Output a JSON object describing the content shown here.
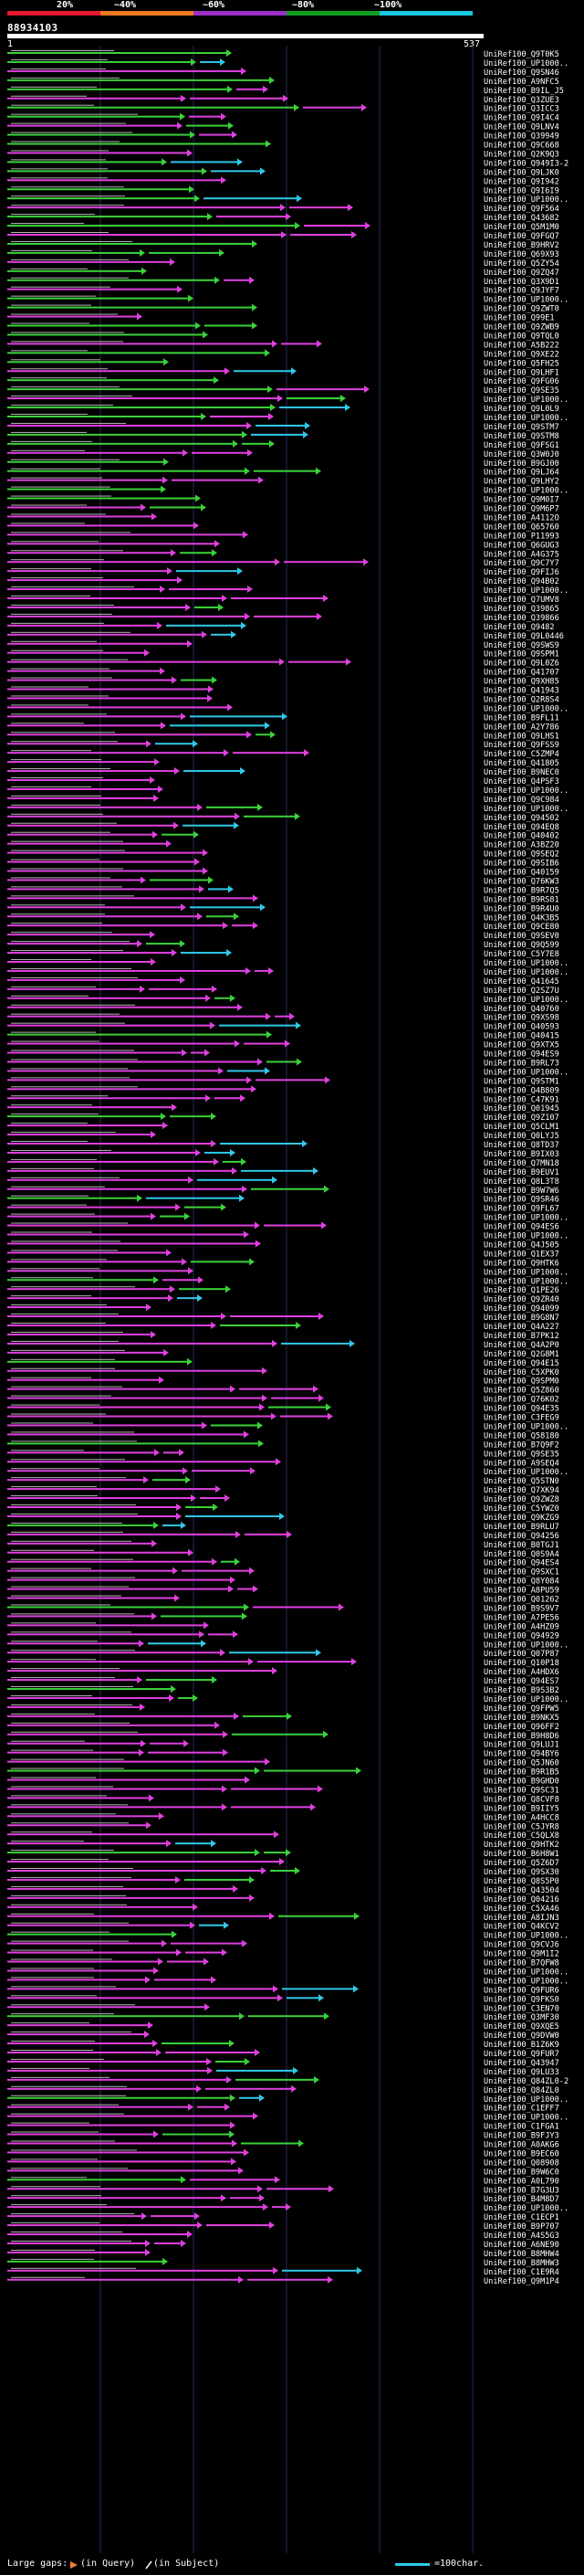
{
  "header": {
    "query_id": "88934103",
    "range_start": "1",
    "range_end": "537",
    "percent_labels": [
      "20%",
      "~40%",
      "~60%",
      "~80%",
      "~100%"
    ],
    "colors": {
      "band_20": "#e8192c",
      "band_40": "#f07820",
      "band_60": "#9b30c8",
      "band_80": "#10a020",
      "band_100": "#18c8e0",
      "magenta": "#e040e0",
      "green": "#3ad23a",
      "cyan": "#30c8e8",
      "orange": "#f08030",
      "white": "#ffffff"
    }
  },
  "hit_labels": [
    "UniRef100_Q9T0K5",
    "UniRef100_UP1000..",
    "UniRef100_Q9SN46",
    "UniRef100_A9NFC5",
    "UniRef100_B9IL_J5",
    "UniRef100_Q3ZUE3",
    "UniRef100_Q3ICC3",
    "UniRef100_Q9I4C4",
    "UniRef100_Q9LNV4",
    "UniRef100_Q39949",
    "UniRef100_Q9C668",
    "UniRef100_Q2K9Q3",
    "UniRef100_Q949I3-2",
    "UniRef100_Q9LJK0",
    "UniRef100_Q9I942",
    "UniRef100_Q9I6I9",
    "UniRef100_UP1000..",
    "UniRef100_Q9F564",
    "UniRef100_Q43682",
    "UniRef100_Q5M1M0",
    "UniRef100_Q9FGQ7",
    "UniRef100_B9HRV2",
    "UniRef100_Q69X93",
    "UniRef100_Q5ZY54",
    "UniRef100_Q9ZQ47",
    "UniRef100_Q3X9D1",
    "UniRef100_Q9JYF7",
    "UniRef100_UP1000..",
    "UniRef100_Q9ZWT0",
    "UniRef100_Q99E1",
    "UniRef100_Q9ZWB9",
    "UniRef100_Q9TQL0",
    "UniRef100_A5B222",
    "UniRef100_Q9XE22",
    "UniRef100_Q5FH25",
    "UniRef100_Q9LHF1",
    "UniRef100_Q9FG06",
    "UniRef100_Q9SE35",
    "UniRef100_UP1000..",
    "UniRef100_Q9L0L9",
    "UniRef100_UP1000..",
    "UniRef100_Q9STM7",
    "UniRef100_Q9STM8",
    "UniRef100_Q9FSG1",
    "UniRef100_Q3W0J0",
    "UniRef100_B9GJ00",
    "UniRef100_Q9LJ64",
    "UniRef100_Q9LHY2",
    "UniRef100_UP1000..",
    "UniRef100_Q9M0I7",
    "UniRef100_Q9M6P7",
    "UniRef100_A4112O",
    "UniRef100_Q65760",
    "UniRef100_P11993",
    "UniRef100_Q6GUG3",
    "UniRef100_A4G375",
    "UniRef100_Q9C7Y7",
    "UniRef100_Q9FIJ6",
    "UniRef100_Q94B02",
    "UniRef100_UP1000..",
    "UniRef100_Q7UMV8",
    "UniRef100_Q39865",
    "UniRef100_Q39866",
    "UniRef100_Q9482",
    "UniRef100_Q9L0446",
    "UniRef100_Q9SWS9",
    "UniRef100_Q9SPM1",
    "UniRef100_Q9L0Z6",
    "UniRef100_Q41707",
    "UniRef100_Q9XH85",
    "UniRef100_Q41943",
    "UniRef100_Q2R8S4",
    "UniRef100_UP1000..",
    "UniRef100_B9FL11",
    "UniRef100_A2Y786",
    "UniRef100_Q9LHS1",
    "UniRef100_Q9FSS9",
    "UniRef100_C5ZMP4",
    "UniRef100_Q41805",
    "UniRef100_B9NEC0",
    "UniRef100_Q4PSF3",
    "UniRef100_UP1000..",
    "UniRef100_Q9C984",
    "UniRef100_UP1000..",
    "UniRef100_Q94502",
    "UniRef100_Q94EQ8",
    "UniRef100_Q40402",
    "UniRef100_A3BZ20",
    "UniRef100_Q9SEQ2",
    "UniRef100_Q9SIB6",
    "UniRef100_Q40159",
    "UniRef100_Q76KW3",
    "UniRef100_B9R7Q5",
    "UniRef100_B9RS81",
    "UniRef100_B9R4U0",
    "UniRef100_Q4K3B5",
    "UniRef100_Q9CE80",
    "UniRef100_Q9SEV0",
    "UniRef100_Q9Q599",
    "UniRef100_C5Y7E8",
    "UniRef100_UP1000..",
    "UniRef100_UP1000..",
    "UniRef100_Q41645",
    "UniRef100_Q2SZ7U",
    "UniRef100_UP1000..",
    "UniRef100_Q40760",
    "UniRef100_Q9XS98",
    "UniRef100_Q40593",
    "UniRef100_Q40415",
    "UniRef100_Q9XTX5",
    "UniRef100_Q94ES9",
    "UniRef100_B9RL73",
    "UniRef100_UP1000..",
    "UniRef100_Q9STM1",
    "UniRef100_Q4B809",
    "UniRef100_C47K91",
    "UniRef100_Q01945",
    "UniRef100_Q9Z107",
    "UniRef100_Q5CLM1",
    "UniRef100_Q0LYJ5",
    "UniRef100_Q8TD37",
    "UniRef100_B9IX03",
    "UniRef100_Q7MN18",
    "UniRef100_B9EUV1",
    "UniRef100_Q8L3T8",
    "UniRef100_B9W7W6",
    "UniRef100_Q9SR46",
    "UniRef100_Q9FL67",
    "UniRef100_UP1000..",
    "UniRef100_Q94ES6",
    "UniRef100_UP1000..",
    "UniRef100_Q4J505",
    "UniRef100_Q1EX37",
    "UniRef100_Q9HTK6",
    "UniRef100_UP1000..",
    "UniRef100_UP1000..",
    "UniRef100_Q1PE26",
    "UniRef100_Q9ZR40",
    "UniRef100_Q94099",
    "UniRef100_B9G8N7",
    "UniRef100_Q4A227",
    "UniRef100_B7PK12",
    "UniRef100_Q4A2P0",
    "UniRef100_Q2G8M1",
    "UniRef100_Q94E15",
    "UniRef100_C5XPK0",
    "UniRef100_Q9SPM0",
    "UniRef100_Q5Z860",
    "UniRef100_Q76K02",
    "UniRef100_Q94E35",
    "UniRef100_C3FEG9",
    "UniRef100_UP1000..",
    "UniRef100_Q58180",
    "UniRef100_B7Q9F2",
    "UniRef100_Q9SE35",
    "UniRef100_A9SEQ4",
    "UniRef100_UP1000..",
    "UniRef100_Q5STN0",
    "UniRef100_Q7XK94",
    "UniRef100_Q9ZWZ8",
    "UniRef100_C5YWZ0",
    "UniRef100_Q9KZG9",
    "UniRef100_B9RLU7",
    "UniRef100_Q94256",
    "UniRef100_B0TGJ1",
    "UniRef100_Q0S9A4",
    "UniRef100_Q94ES4",
    "UniRef100_Q9SXC1",
    "UniRef100_Q8Y084",
    "UniRef100_A8PU59",
    "UniRef100_Q01262",
    "UniRef100_B9S9V7",
    "UniRef100_A7PE56",
    "UniRef100_A4HZ09",
    "UniRef100_Q94929",
    "UniRef100_UP1000..",
    "UniRef100_Q07P87",
    "UniRef100_Q10P18",
    "UniRef100_A4HDX6",
    "UniRef100_Q94ES7",
    "UniRef100_B9S3B2",
    "UniRef100_UP1000..",
    "UniRef100_Q9FPW5",
    "UniRef100_B9NKX5",
    "UniRef100_Q96FF2",
    "UniRef100_B9H8D6",
    "UniRef100_Q9LUJ1",
    "UniRef100_Q94BY6",
    "UniRef100_Q5JN60",
    "UniRef100_B9R1B5",
    "UniRef100_B9GHD0",
    "UniRef100_Q9SC31",
    "UniRef100_Q8CVF8",
    "UniRef100_B9IIY5",
    "UniRef100_A4HCC8",
    "UniRef100_C5JYR8",
    "UniRef100_C5QLX8",
    "UniRef100_Q9HTK2",
    "UniRef100_B6H8W1",
    "UniRef100_Q5Z6D7",
    "UniRef100_Q9SX30",
    "UniRef100_Q8S5P0",
    "UniRef100_Q43504",
    "UniRef100_Q04216",
    "UniRef100_C5XA46",
    "UniRef100_A8IJN3",
    "UniRef100_Q4KCV2",
    "UniRef100_UP1000..",
    "UniRef100_Q9CVJ6",
    "UniRef100_Q9M1I2",
    "UniRef100_B7QFW8",
    "UniRef100_UP1000..",
    "UniRef100_UP1000..",
    "UniRef100_Q9FUR6",
    "UniRef100_Q9FKS0",
    "UniRef100_C3EN70",
    "UniRef100_Q3MF30",
    "UniRef100_Q9XQE5",
    "UniRef100_Q9DVW0",
    "UniRef100_B1Z6K9",
    "UniRef100_Q9FUR7",
    "UniRef100_Q43947",
    "UniRef100_Q9LU33",
    "UniRef100_Q84ZL0-2",
    "UniRef100_Q84ZL0",
    "UniRef100_UP1000..",
    "UniRef100_C1EFF7",
    "UniRef100_UP1000..",
    "UniRef100_C1FGA1",
    "UniRef100_B9FJY3",
    "UniRef100_A0AKG6",
    "UniRef100_B9EC60",
    "UniRef100_Q08908",
    "UniRef100_B9W6C0",
    "UniRef100_A0L790",
    "UniRef100_B7G3U3",
    "UniRef100_B4M8D7",
    "UniRef100_UP1000..",
    "UniRef100_C1ECP1",
    "UniRef100_B9P707",
    "UniRef100_A4S5G3",
    "UniRef100_A6NE90",
    "UniRef100_B8MHW4",
    "UniRef100_B8MHW3",
    "UniRef100_C1E9R4",
    "UniRef100_Q9M1P4"
  ],
  "legend": {
    "gaps_label": "Large gaps:",
    "query_label": "(in Query)",
    "subject_label": "(in Subject)",
    "scale_label": "=100char."
  }
}
